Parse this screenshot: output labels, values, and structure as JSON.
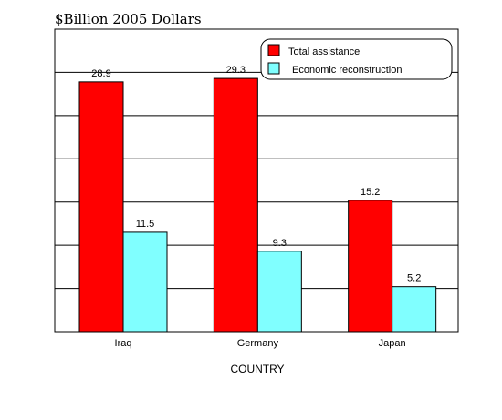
{
  "chart_data": {
    "type": "bar",
    "title": "$Billion 2005 Dollars",
    "xlabel": "COUNTRY",
    "ylabel": "",
    "categories": [
      "Iraq",
      "Germany",
      "Japan"
    ],
    "series": [
      {
        "name": "Total assistance",
        "values": [
          28.9,
          29.3,
          15.2
        ],
        "color": "#ff0000"
      },
      {
        "name": "Economic reconstruction",
        "values": [
          11.5,
          9.3,
          5.2
        ],
        "color": "#80ffff"
      }
    ],
    "ylim": [
      0,
      35
    ],
    "grid": true,
    "legend_position": "top-right"
  }
}
